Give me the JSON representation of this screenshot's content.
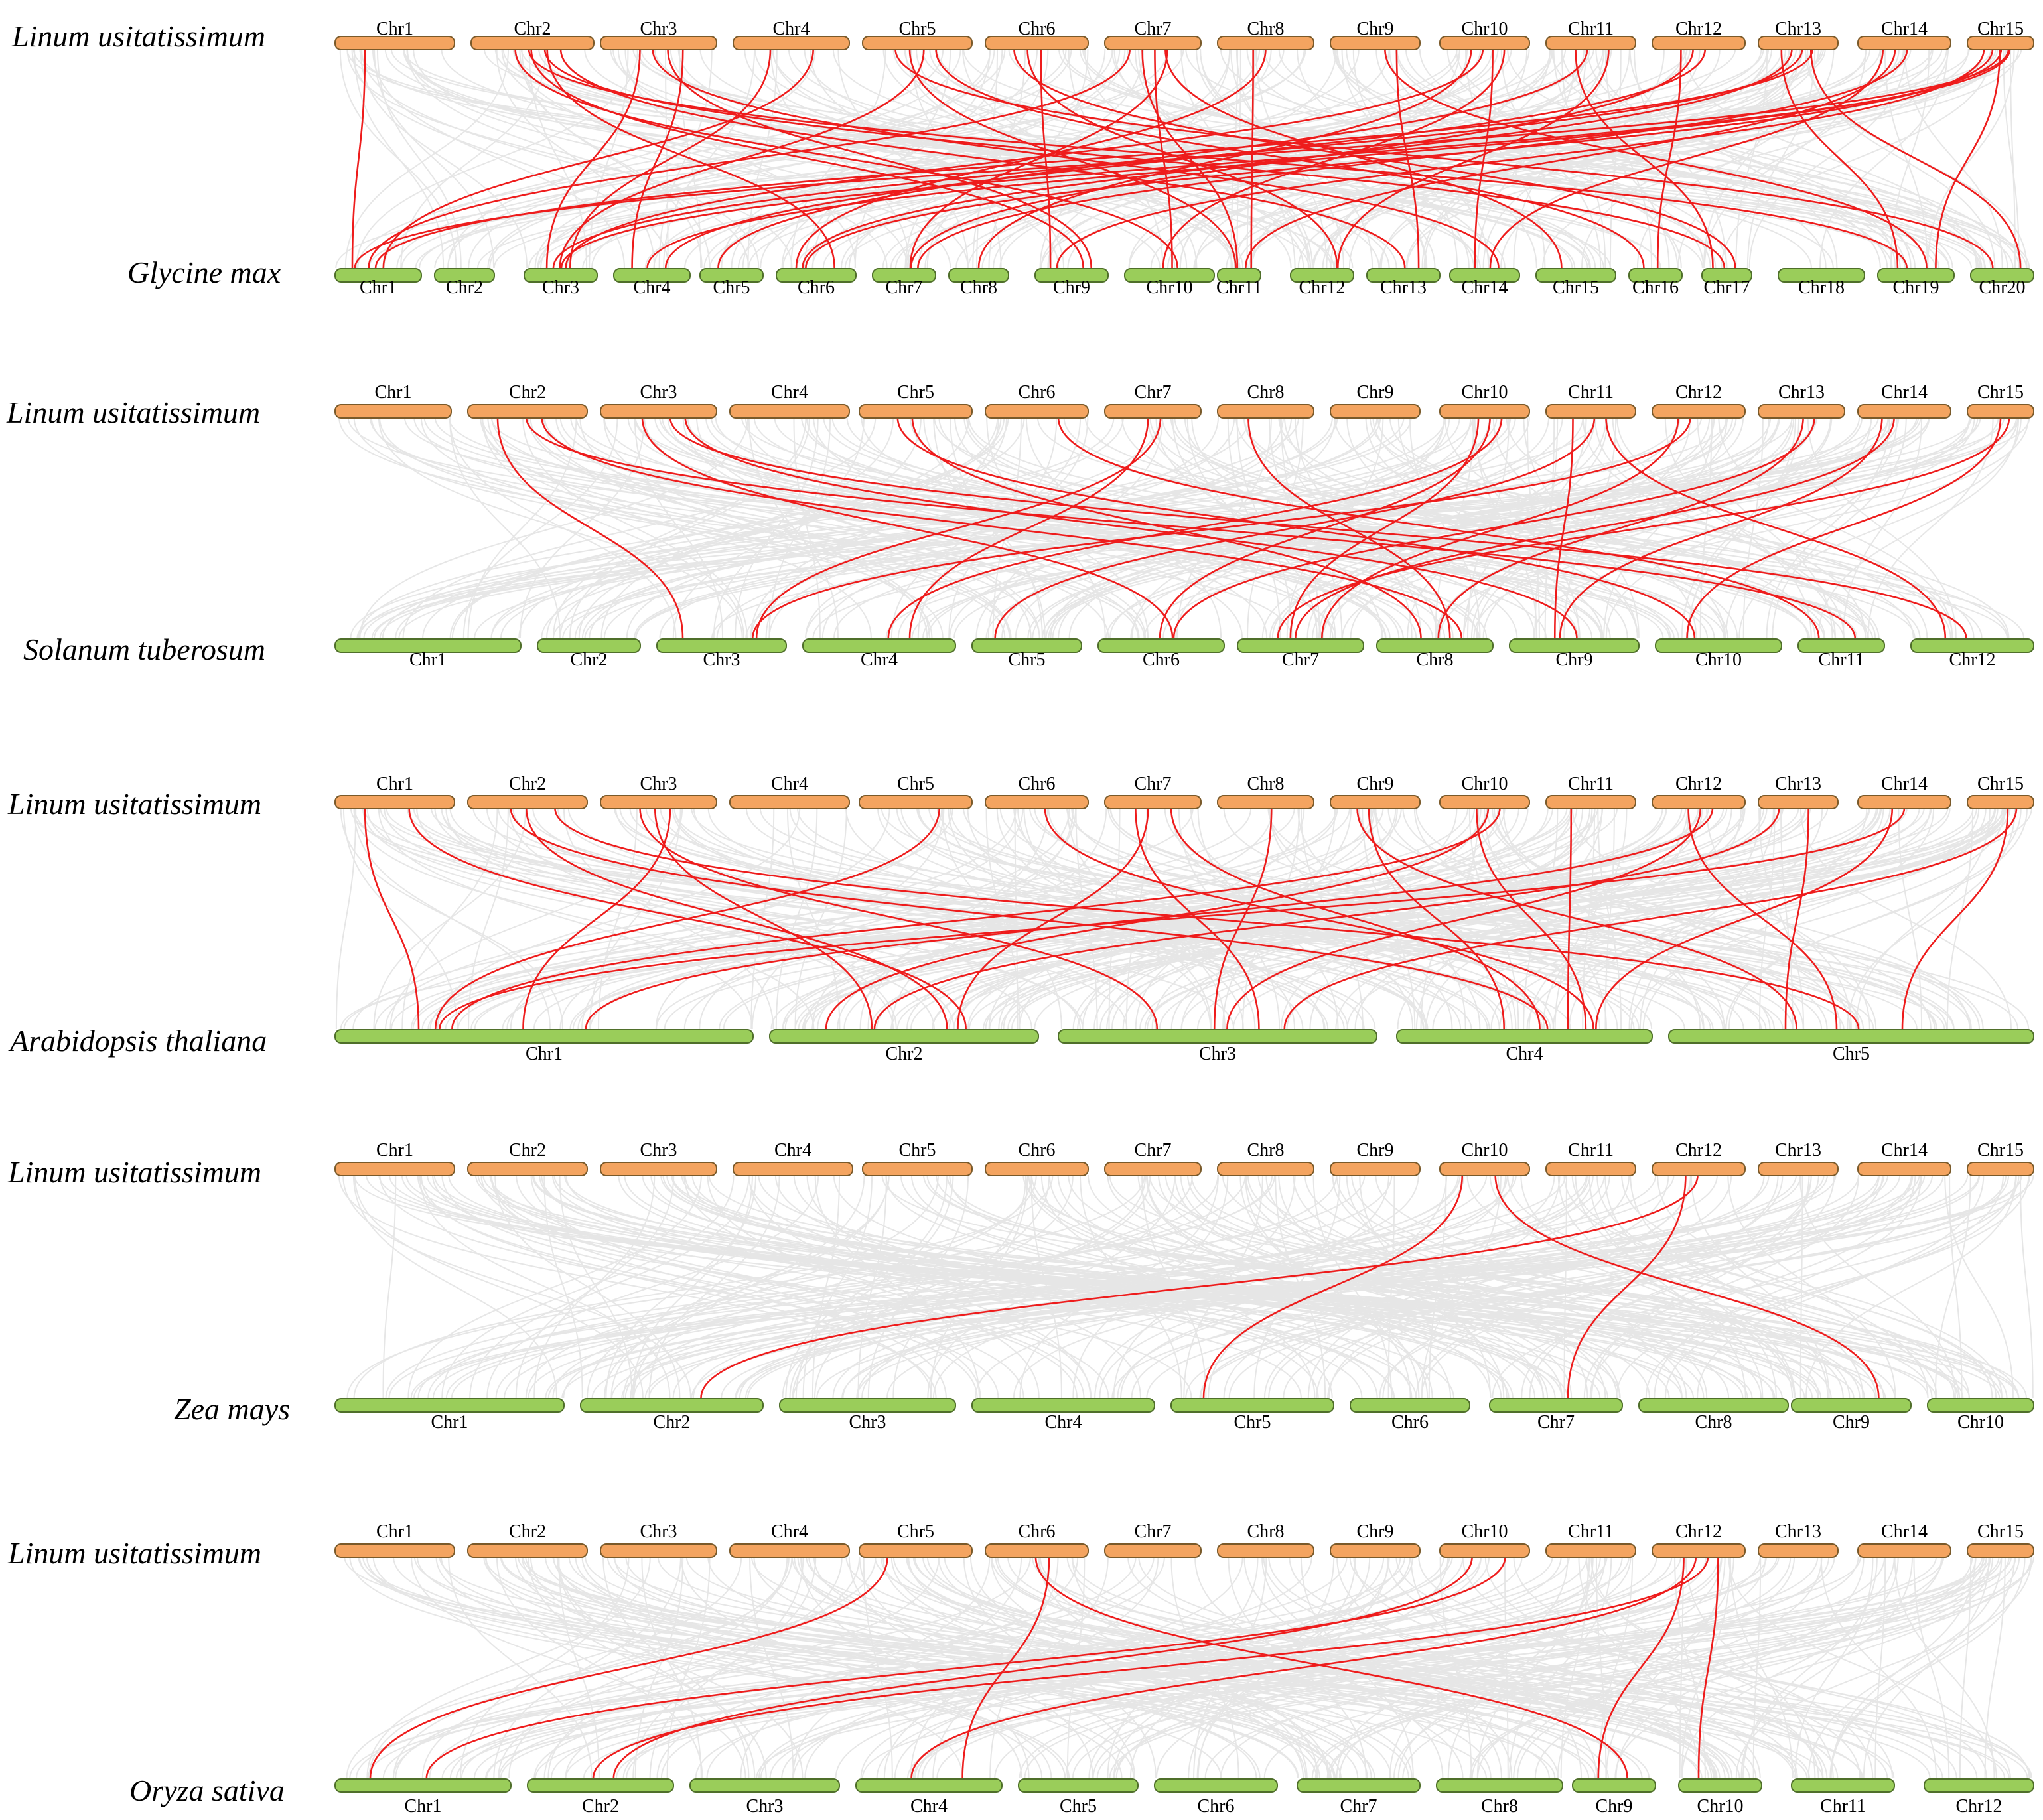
{
  "figure": {
    "type": "synteny_diagram",
    "colors": {
      "query_chromosome": "#f4a460",
      "target_chromosome": "#9acd5a",
      "highlight_link": "#ee1c1c",
      "background_link": "#e6e6e6"
    }
  },
  "panels": [
    {
      "query_species": "Linum usitatissimum",
      "target_species": "Glycine max",
      "query_chromosomes": [
        "Chr1",
        "Chr2",
        "Chr3",
        "Chr4",
        "Chr5",
        "Chr6",
        "Chr7",
        "Chr8",
        "Chr9",
        "Chr10",
        "Chr11",
        "Chr12",
        "Chr13",
        "Chr14",
        "Chr15"
      ],
      "target_chromosomes": [
        "Chr1",
        "Chr2",
        "Chr3",
        "Chr4",
        "Chr5",
        "Chr6",
        "Chr7",
        "Chr8",
        "Chr9",
        "Chr10",
        "Chr11",
        "Chr12",
        "Chr13",
        "Chr14",
        "Chr15",
        "Chr16",
        "Chr17",
        "Chr18",
        "Chr19",
        "Chr20"
      ],
      "highlight_links": [
        [
          "Chr1",
          "Chr1"
        ],
        [
          "Chr2",
          "Chr6"
        ],
        [
          "Chr2",
          "Chr9"
        ],
        [
          "Chr2",
          "Chr10"
        ],
        [
          "Chr2",
          "Chr13"
        ],
        [
          "Chr2",
          "Chr17"
        ],
        [
          "Chr2",
          "Chr19"
        ],
        [
          "Chr3",
          "Chr3"
        ],
        [
          "Chr3",
          "Chr4"
        ],
        [
          "Chr3",
          "Chr9"
        ],
        [
          "Chr3",
          "Chr14"
        ],
        [
          "Chr4",
          "Chr3"
        ],
        [
          "Chr4",
          "Chr1"
        ],
        [
          "Chr5",
          "Chr3"
        ],
        [
          "Chr5",
          "Chr11"
        ],
        [
          "Chr5",
          "Chr20"
        ],
        [
          "Chr5",
          "Chr16"
        ],
        [
          "Chr6",
          "Chr9"
        ],
        [
          "Chr6",
          "Chr12"
        ],
        [
          "Chr6",
          "Chr17"
        ],
        [
          "Chr7",
          "Chr7"
        ],
        [
          "Chr7",
          "Chr10"
        ],
        [
          "Chr7",
          "Chr11"
        ],
        [
          "Chr7",
          "Chr1"
        ],
        [
          "Chr7",
          "Chr15"
        ],
        [
          "Chr8",
          "Chr6"
        ],
        [
          "Chr8",
          "Chr11"
        ],
        [
          "Chr9",
          "Chr13"
        ],
        [
          "Chr9",
          "Chr19"
        ],
        [
          "Chr10",
          "Chr3"
        ],
        [
          "Chr10",
          "Chr8"
        ],
        [
          "Chr10",
          "Chr10"
        ],
        [
          "Chr10",
          "Chr14"
        ],
        [
          "Chr11",
          "Chr5"
        ],
        [
          "Chr11",
          "Chr17"
        ],
        [
          "Chr11",
          "Chr12"
        ],
        [
          "Chr12",
          "Chr4"
        ],
        [
          "Chr12",
          "Chr7"
        ],
        [
          "Chr12",
          "Chr16"
        ],
        [
          "Chr13",
          "Chr1"
        ],
        [
          "Chr13",
          "Chr3"
        ],
        [
          "Chr13",
          "Chr6"
        ],
        [
          "Chr13",
          "Chr19"
        ],
        [
          "Chr13",
          "Chr20"
        ],
        [
          "Chr14",
          "Chr7"
        ],
        [
          "Chr14",
          "Chr11"
        ],
        [
          "Chr14",
          "Chr14"
        ],
        [
          "Chr15",
          "Chr3"
        ],
        [
          "Chr15",
          "Chr4"
        ],
        [
          "Chr15",
          "Chr6"
        ],
        [
          "Chr15",
          "Chr9"
        ],
        [
          "Chr15",
          "Chr1"
        ],
        [
          "Chr15",
          "Chr19"
        ]
      ]
    },
    {
      "query_species": "Linum usitatissimum",
      "target_species": "Solanum tuberosum",
      "query_chromosomes": [
        "Chr1",
        "Chr2",
        "Chr3",
        "Chr4",
        "Chr5",
        "Chr6",
        "Chr7",
        "Chr8",
        "Chr9",
        "Chr10",
        "Chr11",
        "Chr12",
        "Chr13",
        "Chr14",
        "Chr15"
      ],
      "target_chromosomes": [
        "Chr1",
        "Chr2",
        "Chr3",
        "Chr4",
        "Chr5",
        "Chr6",
        "Chr7",
        "Chr8",
        "Chr9",
        "Chr10",
        "Chr11",
        "Chr12"
      ],
      "highlight_links": [
        [
          "Chr2",
          "Chr3"
        ],
        [
          "Chr2",
          "Chr8"
        ],
        [
          "Chr2",
          "Chr11"
        ],
        [
          "Chr3",
          "Chr6"
        ],
        [
          "Chr3",
          "Chr9"
        ],
        [
          "Chr3",
          "Chr12"
        ],
        [
          "Chr5",
          "Chr8"
        ],
        [
          "Chr5",
          "Chr10"
        ],
        [
          "Chr6",
          "Chr11"
        ],
        [
          "Chr7",
          "Chr3"
        ],
        [
          "Chr7",
          "Chr4"
        ],
        [
          "Chr8",
          "Chr8"
        ],
        [
          "Chr10",
          "Chr4"
        ],
        [
          "Chr10",
          "Chr6"
        ],
        [
          "Chr10",
          "Chr7"
        ],
        [
          "Chr11",
          "Chr9"
        ],
        [
          "Chr11",
          "Chr12"
        ],
        [
          "Chr11",
          "Chr5"
        ],
        [
          "Chr12",
          "Chr3"
        ],
        [
          "Chr12",
          "Chr7"
        ],
        [
          "Chr13",
          "Chr6"
        ],
        [
          "Chr13",
          "Chr8"
        ],
        [
          "Chr14",
          "Chr7"
        ],
        [
          "Chr14",
          "Chr9"
        ],
        [
          "Chr15",
          "Chr7"
        ],
        [
          "Chr15",
          "Chr10"
        ]
      ]
    },
    {
      "query_species": "Linum usitatissimum",
      "target_species": "Arabidopsis thaliana",
      "query_chromosomes": [
        "Chr1",
        "Chr2",
        "Chr3",
        "Chr4",
        "Chr5",
        "Chr6",
        "Chr7",
        "Chr8",
        "Chr9",
        "Chr10",
        "Chr11",
        "Chr12",
        "Chr13",
        "Chr14",
        "Chr15"
      ],
      "target_chromosomes": [
        "Chr1",
        "Chr2",
        "Chr3",
        "Chr4",
        "Chr5"
      ],
      "highlight_links": [
        [
          "Chr1",
          "Chr1"
        ],
        [
          "Chr1",
          "Chr2"
        ],
        [
          "Chr2",
          "Chr2"
        ],
        [
          "Chr2",
          "Chr4"
        ],
        [
          "Chr2",
          "Chr5"
        ],
        [
          "Chr3",
          "Chr1"
        ],
        [
          "Chr3",
          "Chr2"
        ],
        [
          "Chr3",
          "Chr3"
        ],
        [
          "Chr5",
          "Chr1"
        ],
        [
          "Chr6",
          "Chr4"
        ],
        [
          "Chr7",
          "Chr2"
        ],
        [
          "Chr7",
          "Chr3"
        ],
        [
          "Chr7",
          "Chr4"
        ],
        [
          "Chr8",
          "Chr3"
        ],
        [
          "Chr9",
          "Chr4"
        ],
        [
          "Chr9",
          "Chr5"
        ],
        [
          "Chr10",
          "Chr1"
        ],
        [
          "Chr10",
          "Chr2"
        ],
        [
          "Chr10",
          "Chr4"
        ],
        [
          "Chr11",
          "Chr4"
        ],
        [
          "Chr12",
          "Chr1"
        ],
        [
          "Chr12",
          "Chr3"
        ],
        [
          "Chr12",
          "Chr5"
        ],
        [
          "Chr13",
          "Chr2"
        ],
        [
          "Chr13",
          "Chr5"
        ],
        [
          "Chr14",
          "Chr1"
        ],
        [
          "Chr14",
          "Chr4"
        ],
        [
          "Chr15",
          "Chr3"
        ],
        [
          "Chr15",
          "Chr5"
        ]
      ]
    },
    {
      "query_species": "Linum usitatissimum",
      "target_species": "Zea mays",
      "query_chromosomes": [
        "Chr1",
        "Chr2",
        "Chr3",
        "Chr4",
        "Chr5",
        "Chr6",
        "Chr7",
        "Chr8",
        "Chr9",
        "Chr10",
        "Chr11",
        "Chr12",
        "Chr13",
        "Chr14",
        "Chr15"
      ],
      "target_chromosomes": [
        "Chr1",
        "Chr2",
        "Chr3",
        "Chr4",
        "Chr5",
        "Chr6",
        "Chr7",
        "Chr8",
        "Chr9",
        "Chr10"
      ],
      "highlight_links": [
        [
          "Chr10",
          "Chr5"
        ],
        [
          "Chr10",
          "Chr9"
        ],
        [
          "Chr12",
          "Chr2"
        ],
        [
          "Chr12",
          "Chr7"
        ]
      ]
    },
    {
      "query_species": "Linum usitatissimum",
      "target_species": "Oryza sativa",
      "query_chromosomes": [
        "Chr1",
        "Chr2",
        "Chr3",
        "Chr4",
        "Chr5",
        "Chr6",
        "Chr7",
        "Chr8",
        "Chr9",
        "Chr10",
        "Chr11",
        "Chr12",
        "Chr13",
        "Chr14",
        "Chr15"
      ],
      "target_chromosomes": [
        "Chr1",
        "Chr2",
        "Chr3",
        "Chr4",
        "Chr5",
        "Chr6",
        "Chr7",
        "Chr8",
        "Chr9",
        "Chr10",
        "Chr11",
        "Chr12"
      ],
      "highlight_links": [
        [
          "Chr5",
          "Chr1"
        ],
        [
          "Chr6",
          "Chr4"
        ],
        [
          "Chr6",
          "Chr9"
        ],
        [
          "Chr10",
          "Chr2"
        ],
        [
          "Chr10",
          "Chr1"
        ],
        [
          "Chr12",
          "Chr2"
        ],
        [
          "Chr12",
          "Chr4"
        ],
        [
          "Chr12",
          "Chr9"
        ],
        [
          "Chr12",
          "Chr10"
        ]
      ]
    }
  ]
}
